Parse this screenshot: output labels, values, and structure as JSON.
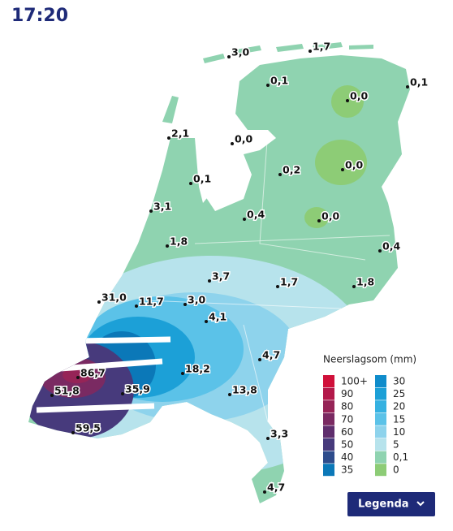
{
  "header": {
    "time": "17:20"
  },
  "stations": [
    {
      "label": "3,0"
    },
    {
      "label": "1,7"
    },
    {
      "label": "0,1"
    },
    {
      "label": "0,1"
    },
    {
      "label": "0,0"
    },
    {
      "label": "2,1"
    },
    {
      "label": "0,0"
    },
    {
      "label": "0,1"
    },
    {
      "label": "0,2"
    },
    {
      "label": "0,0"
    },
    {
      "label": "3,1"
    },
    {
      "label": "0,4"
    },
    {
      "label": "0,0"
    },
    {
      "label": "1,8"
    },
    {
      "label": "0,4"
    },
    {
      "label": "3,7"
    },
    {
      "label": "1,7"
    },
    {
      "label": "1,8"
    },
    {
      "label": "31,0"
    },
    {
      "label": "11,7"
    },
    {
      "label": "3,0"
    },
    {
      "label": "4,1"
    },
    {
      "label": "4,7"
    },
    {
      "label": "86,7"
    },
    {
      "label": "18,2"
    },
    {
      "label": "51,8"
    },
    {
      "label": "35,9"
    },
    {
      "label": "13,8"
    },
    {
      "label": "59,5"
    },
    {
      "label": "3,3"
    },
    {
      "label": "4,7"
    }
  ],
  "legend": {
    "title": "Neerslagsom (mm)",
    "left": [
      {
        "label": "100+",
        "color": "#d0103a"
      },
      {
        "label": "90",
        "color": "#b3194a"
      },
      {
        "label": "80",
        "color": "#962457"
      },
      {
        "label": "70",
        "color": "#7a2a62"
      },
      {
        "label": "60",
        "color": "#5f2e6d"
      },
      {
        "label": "50",
        "color": "#473a7c"
      },
      {
        "label": "40",
        "color": "#2e4c8c"
      },
      {
        "label": "35",
        "color": "#0b78b8"
      }
    ],
    "right": [
      {
        "label": "30",
        "color": "#0f8ccb"
      },
      {
        "label": "25",
        "color": "#1ca0d7"
      },
      {
        "label": "20",
        "color": "#35b1e1"
      },
      {
        "label": "15",
        "color": "#5bc2e8"
      },
      {
        "label": "10",
        "color": "#8ed3ec"
      },
      {
        "label": "5",
        "color": "#b7e3ec"
      },
      {
        "label": "0,1",
        "color": "#8fd3b0"
      },
      {
        "label": "0",
        "color": "#8dcc76"
      }
    ]
  },
  "button": {
    "label": "Legenda"
  }
}
